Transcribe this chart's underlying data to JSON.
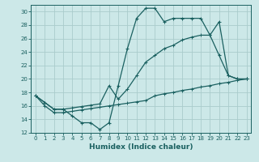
{
  "xlabel": "Humidex (Indice chaleur)",
  "background_color": "#cce8e8",
  "grid_color": "#aacccc",
  "line_color": "#1a6060",
  "xlim": [
    -0.5,
    23.5
  ],
  "ylim": [
    12,
    31
  ],
  "xticks": [
    0,
    1,
    2,
    3,
    4,
    5,
    6,
    7,
    8,
    9,
    10,
    11,
    12,
    13,
    14,
    15,
    16,
    17,
    18,
    19,
    20,
    21,
    22,
    23
  ],
  "yticks": [
    12,
    14,
    16,
    18,
    20,
    22,
    24,
    26,
    28,
    30
  ],
  "curve1_x": [
    0,
    1,
    2,
    3,
    4,
    5,
    6,
    7,
    8,
    9,
    10,
    11,
    12,
    13,
    14,
    15,
    16,
    17,
    18,
    19,
    20,
    21,
    22,
    23
  ],
  "curve1_y": [
    17.5,
    16.5,
    15.5,
    15.5,
    14.5,
    13.5,
    13.5,
    12.5,
    13.5,
    19.0,
    24.5,
    29.0,
    30.5,
    30.5,
    28.5,
    29.0,
    29.0,
    29.0,
    29.0,
    26.5,
    23.5,
    20.5,
    20.0,
    20.0
  ],
  "curve2_x": [
    0,
    1,
    2,
    3,
    4,
    5,
    6,
    7,
    8,
    9,
    10,
    11,
    12,
    13,
    14,
    15,
    16,
    17,
    18,
    19,
    20,
    21,
    22,
    23
  ],
  "curve2_y": [
    17.5,
    16.0,
    15.0,
    15.0,
    15.2,
    15.4,
    15.6,
    15.8,
    16.0,
    16.2,
    16.4,
    16.6,
    16.8,
    17.5,
    17.8,
    18.0,
    18.3,
    18.5,
    18.8,
    19.0,
    19.3,
    19.5,
    19.8,
    20.0
  ],
  "curve3_x": [
    0,
    1,
    2,
    3,
    4,
    5,
    6,
    7,
    8,
    9,
    10,
    11,
    12,
    13,
    14,
    15,
    16,
    17,
    18,
    19,
    20,
    21,
    22,
    23
  ],
  "curve3_y": [
    17.5,
    16.5,
    15.5,
    15.5,
    15.7,
    15.9,
    16.1,
    16.3,
    19.0,
    17.0,
    18.5,
    20.5,
    22.5,
    23.5,
    24.5,
    25.0,
    25.8,
    26.2,
    26.5,
    26.5,
    28.5,
    20.5,
    20.0,
    20.0
  ]
}
